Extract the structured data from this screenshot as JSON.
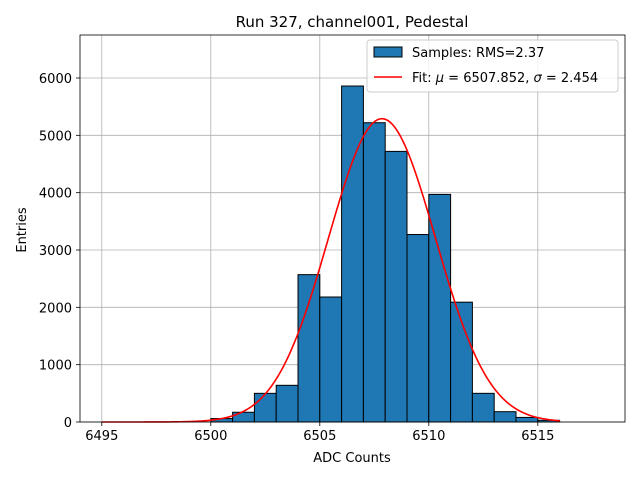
{
  "chart_data": {
    "type": "bar",
    "title": "Run 327, channel001, Pedestal",
    "xlabel": "ADC Counts",
    "ylabel": "Entries",
    "xlim": [
      6494,
      6519
    ],
    "ylim": [
      0,
      6750
    ],
    "xticks": [
      6495,
      6500,
      6505,
      6510,
      6515
    ],
    "yticks": [
      0,
      1000,
      2000,
      3000,
      4000,
      5000,
      6000
    ],
    "grid": true,
    "legend_position": "top-right",
    "histogram": {
      "name": "Samples: RMS=2.37",
      "bin_width": 1,
      "bins": [
        {
          "x": 6500,
          "count": 60
        },
        {
          "x": 6501,
          "count": 170
        },
        {
          "x": 6502,
          "count": 500
        },
        {
          "x": 6503,
          "count": 640
        },
        {
          "x": 6504,
          "count": 2570
        },
        {
          "x": 6505,
          "count": 2180
        },
        {
          "x": 6506,
          "count": 5860
        },
        {
          "x": 6507,
          "count": 5220
        },
        {
          "x": 6508,
          "count": 4720
        },
        {
          "x": 6509,
          "count": 3270
        },
        {
          "x": 6510,
          "count": 3970
        },
        {
          "x": 6511,
          "count": 2090
        },
        {
          "x": 6512,
          "count": 500
        },
        {
          "x": 6513,
          "count": 180
        },
        {
          "x": 6514,
          "count": 80
        },
        {
          "x": 6515,
          "count": 30
        }
      ],
      "fill": "#1f77b4",
      "edge": "#000000"
    },
    "fit": {
      "name": "Fit: μ = 6507.852, σ = 2.454",
      "label_prefix": "Fit: ",
      "mu_symbol": "μ",
      "mu_value": " = 6507.852, ",
      "sigma_symbol": "σ",
      "sigma_value": " = 2.454",
      "mu": 6507.852,
      "sigma": 2.454,
      "amplitude": 5290,
      "x_range": [
        6495,
        6516
      ],
      "color": "#ff0000"
    }
  }
}
